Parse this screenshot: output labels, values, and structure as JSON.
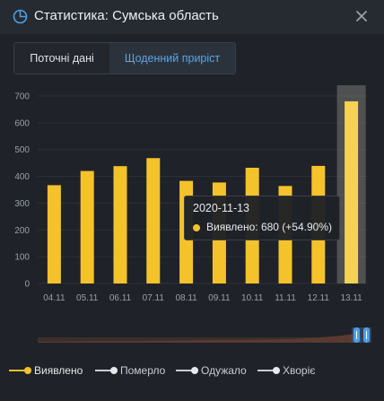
{
  "header": {
    "title": "Статистика: Сумська область"
  },
  "tabs": [
    {
      "label": "Поточні дані",
      "active": false
    },
    {
      "label": "Щоденний приріст",
      "active": true
    }
  ],
  "colors": {
    "accent": "#f4c22b",
    "tab_active": "#5aa5e6",
    "navigator": "#4aa0e8"
  },
  "chart_data": {
    "type": "bar",
    "categories": [
      "04.11",
      "05.11",
      "06.11",
      "07.11",
      "08.11",
      "09.11",
      "10.11",
      "11.11",
      "12.11",
      "13.11"
    ],
    "series": [
      {
        "name": "Виявлено",
        "values": [
          367,
          420,
          438,
          468,
          383,
          377,
          432,
          364,
          439,
          680
        ]
      }
    ],
    "yticks": [
      0,
      100,
      200,
      300,
      400,
      500,
      600,
      700
    ],
    "ylim": [
      0,
      730
    ],
    "grid": true,
    "highlighted_category": "13.11"
  },
  "tooltip": {
    "date": "2020-11-13",
    "text": "Виявлено: 680 (+54.90%)"
  },
  "legend": [
    {
      "label": "Виявлено",
      "color": "#f4c22b",
      "active": true
    },
    {
      "label": "Померло",
      "color": "#e6e8ec",
      "active": false
    },
    {
      "label": "Одужало",
      "color": "#e6e8ec",
      "active": false
    },
    {
      "label": "Хворіє",
      "color": "#e6e8ec",
      "active": false
    }
  ]
}
